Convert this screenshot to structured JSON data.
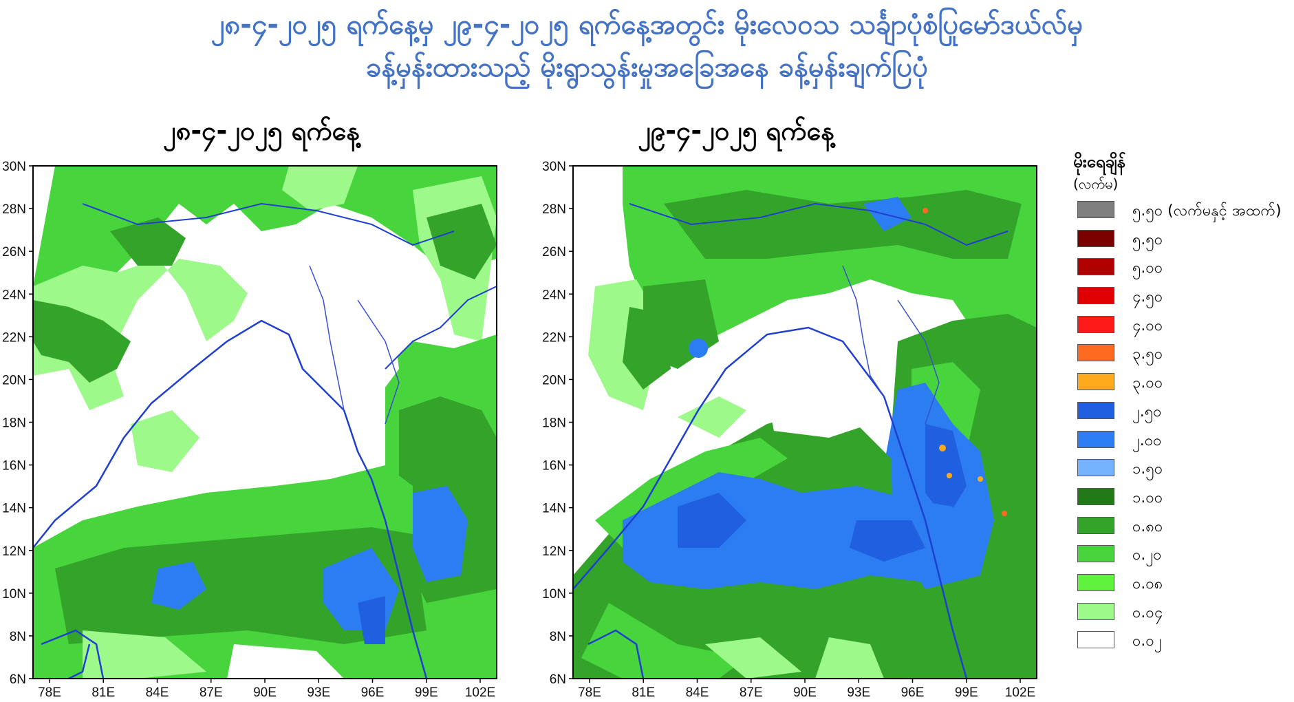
{
  "title": {
    "line1": "၂၈-၄-၂၀၂၅ ရက်နေ့မှ ၂၉-၄-၂၀၂၅ ရက်နေ့အတွင်း မိုးလေဝသ သင်္ချာပုံစံပြုမော်ဒယ်လ်မှ",
    "line2": "ခန့်မှန်းထားသည့် မိုးရွာသွန်းမှုအခြေအနေ ခန့်မှန်းချက်ပြပုံ"
  },
  "maps": [
    {
      "heading": "၂၈-၄-၂၀၂၅ ရက်နေ့",
      "lat_ticks": [
        "30N",
        "28N",
        "26N",
        "24N",
        "22N",
        "20N",
        "18N",
        "16N",
        "14N",
        "12N",
        "10N",
        "8N",
        "6N"
      ],
      "lon_ticks": [
        "78E",
        "81E",
        "84E",
        "87E",
        "90E",
        "93E",
        "96E",
        "99E",
        "102E"
      ]
    },
    {
      "heading": "၂၉-၄-၂၀၂၅ ရက်နေ့",
      "lat_ticks": [
        "30N",
        "28N",
        "26N",
        "24N",
        "22N",
        "20N",
        "18N",
        "16N",
        "14N",
        "12N",
        "10N",
        "8N",
        "6N"
      ],
      "lon_ticks": [
        "78E",
        "81E",
        "84E",
        "87E",
        "90E",
        "93E",
        "96E",
        "99E",
        "102E"
      ]
    }
  ],
  "legend": {
    "title": "မိုးရေချိန်",
    "unit": "(လက်မ)",
    "items": [
      {
        "label": "၅.၅၀ (လက်မနှင့် အထက်)",
        "color": "#7f7f7f"
      },
      {
        "label": "၅.၅၀",
        "color": "#7b0000"
      },
      {
        "label": "၅.၀၀",
        "color": "#b00000"
      },
      {
        "label": "၄.၅၀",
        "color": "#e00000"
      },
      {
        "label": "၄.၀၀",
        "color": "#ff1a1a"
      },
      {
        "label": "၃.၅၀",
        "color": "#ff6a21"
      },
      {
        "label": "၃.၀၀",
        "color": "#ffaa1c"
      },
      {
        "label": "၂.၅၀",
        "color": "#1f5fe0"
      },
      {
        "label": "၂.၀၀",
        "color": "#2c7df2"
      },
      {
        "label": "၁.၅၀",
        "color": "#72b2ff"
      },
      {
        "label": "၁.၀၀",
        "color": "#217a17"
      },
      {
        "label": "၀.၈၀",
        "color": "#33a329"
      },
      {
        "label": "၀.၂၀",
        "color": "#47d43d"
      },
      {
        "label": "၀.၀၈",
        "color": "#5ef23d"
      },
      {
        "label": "၀.၀၄",
        "color": "#9dfa8a"
      },
      {
        "label": "၀.၀၂",
        "color": "#ffffff"
      }
    ]
  }
}
